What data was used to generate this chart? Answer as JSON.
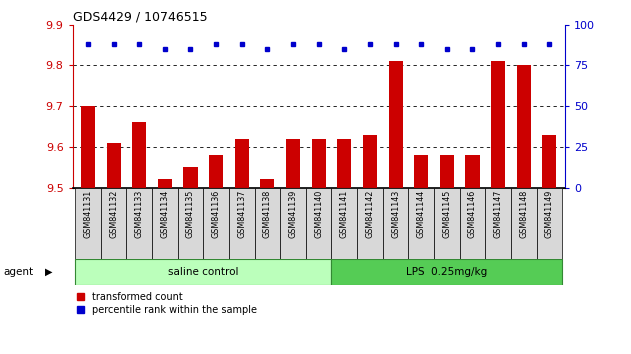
{
  "title": "GDS4429 / 10746515",
  "categories": [
    "GSM841131",
    "GSM841132",
    "GSM841133",
    "GSM841134",
    "GSM841135",
    "GSM841136",
    "GSM841137",
    "GSM841138",
    "GSM841139",
    "GSM841140",
    "GSM841141",
    "GSM841142",
    "GSM841143",
    "GSM841144",
    "GSM841145",
    "GSM841146",
    "GSM841147",
    "GSM841148",
    "GSM841149"
  ],
  "red_values": [
    9.7,
    9.61,
    9.66,
    9.52,
    9.55,
    9.58,
    9.62,
    9.52,
    9.62,
    9.62,
    9.62,
    9.63,
    9.81,
    9.58,
    9.58,
    9.58,
    9.81,
    9.8,
    9.63
  ],
  "blue_values": [
    88,
    88,
    88,
    85,
    85,
    88,
    88,
    85,
    88,
    88,
    85,
    88,
    88,
    88,
    85,
    85,
    88,
    88,
    88
  ],
  "ylim_left": [
    9.5,
    9.9
  ],
  "ylim_right": [
    0,
    100
  ],
  "yticks_left": [
    9.5,
    9.6,
    9.7,
    9.8,
    9.9
  ],
  "yticks_right": [
    0,
    25,
    50,
    75,
    100
  ],
  "grid_values": [
    9.6,
    9.7,
    9.8
  ],
  "saline_count": 10,
  "lps_count": 9,
  "saline_label": "saline control",
  "lps_label": "LPS  0.25mg/kg",
  "agent_label": "agent",
  "legend_red": "transformed count",
  "legend_blue": "percentile rank within the sample",
  "bar_color": "#cc0000",
  "dot_color": "#0000cc",
  "saline_color": "#bbffbb",
  "lps_color": "#55cc55",
  "left_axis_color": "#cc0000",
  "right_axis_color": "#0000cc",
  "bar_width": 0.55,
  "bg_color": "#ffffff"
}
